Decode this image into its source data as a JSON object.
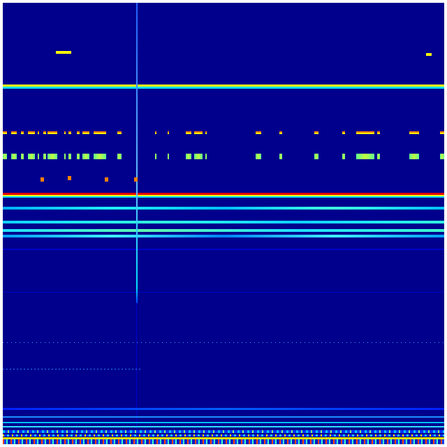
{
  "image": {
    "kind": "spectrogram-heatmap",
    "colormap": "jet",
    "colors": {
      "background": "#00008c",
      "low": "#0000c8",
      "mid_blue": "#0050ff",
      "cyan": "#00e0ff",
      "green": "#80ff80",
      "yellow": "#ffff00",
      "orange": "#ff8000",
      "red": "#e00000"
    }
  }
}
